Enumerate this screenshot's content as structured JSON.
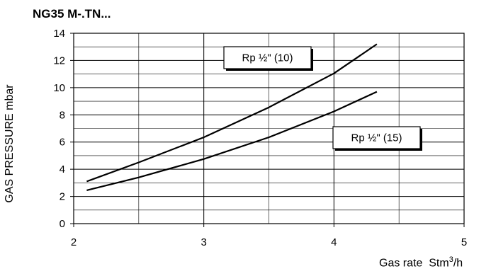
{
  "chart_data": {
    "type": "line",
    "title": "NG35 M-.TN...",
    "ylabel": "GAS PRESSURE mbar",
    "xlabel": "Gas rate",
    "xlabel_unit_base": "Stm",
    "xlabel_unit_exp": "3",
    "xlabel_unit_tail": "/h",
    "xlim": [
      2,
      5
    ],
    "ylim": [
      0,
      14
    ],
    "x_ticks": [
      2,
      3,
      4,
      5
    ],
    "y_ticks": [
      0,
      2,
      4,
      6,
      8,
      10,
      12,
      14
    ],
    "grid": true,
    "series": [
      {
        "name": "Rp ½\" (10)",
        "x": [
          2.1,
          2.5,
          3.0,
          3.5,
          4.0,
          4.33
        ],
        "y": [
          3.1,
          4.5,
          6.35,
          8.55,
          11.05,
          13.2
        ]
      },
      {
        "name": "Rp ½\" (15)",
        "x": [
          2.1,
          2.5,
          3.0,
          3.5,
          4.0,
          4.33
        ],
        "y": [
          2.45,
          3.4,
          4.75,
          6.35,
          8.25,
          9.7
        ]
      }
    ]
  }
}
